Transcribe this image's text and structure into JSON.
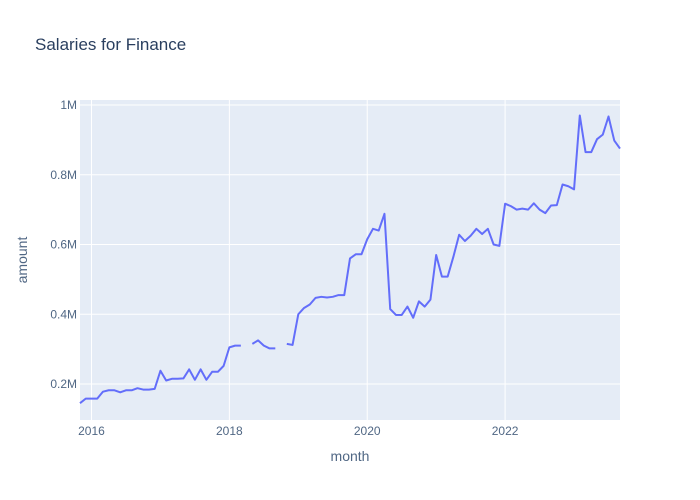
{
  "chart_data": {
    "type": "line",
    "title": "Salaries for Finance",
    "xlabel": "month",
    "ylabel": "amount",
    "x_ticks": [
      "2016",
      "2018",
      "2020",
      "2022"
    ],
    "y_ticks": [
      "0.2M",
      "0.4M",
      "0.6M",
      "0.8M",
      "1M"
    ],
    "grid": true,
    "line_color": "#636efa",
    "plot_bg": "#e5ecf6",
    "series": [
      {
        "segments": [
          [
            [
              "2015-11",
              0.145
            ],
            [
              "2015-12",
              0.158
            ],
            [
              "2016-01",
              0.158
            ],
            [
              "2016-02",
              0.158
            ],
            [
              "2016-03",
              0.178
            ],
            [
              "2016-04",
              0.182
            ],
            [
              "2016-05",
              0.182
            ],
            [
              "2016-06",
              0.176
            ],
            [
              "2016-07",
              0.182
            ],
            [
              "2016-08",
              0.182
            ],
            [
              "2016-09",
              0.188
            ],
            [
              "2016-10",
              0.184
            ],
            [
              "2016-11",
              0.184
            ],
            [
              "2016-12",
              0.186
            ],
            [
              "2017-01",
              0.238
            ],
            [
              "2017-02",
              0.21
            ],
            [
              "2017-03",
              0.215
            ],
            [
              "2017-04",
              0.215
            ],
            [
              "2017-05",
              0.216
            ],
            [
              "2017-06",
              0.242
            ],
            [
              "2017-07",
              0.212
            ],
            [
              "2017-08",
              0.242
            ],
            [
              "2017-09",
              0.212
            ],
            [
              "2017-10",
              0.235
            ],
            [
              "2017-11",
              0.235
            ],
            [
              "2017-12",
              0.252
            ],
            [
              "2018-01",
              0.305
            ],
            [
              "2018-02",
              0.31
            ],
            [
              "2018-03",
              0.31
            ]
          ],
          [
            [
              "2018-05",
              0.315
            ],
            [
              "2018-06",
              0.325
            ],
            [
              "2018-07",
              0.31
            ],
            [
              "2018-08",
              0.302
            ],
            [
              "2018-09",
              0.302
            ]
          ],
          [
            [
              "2018-11",
              0.315
            ],
            [
              "2018-12",
              0.312
            ],
            [
              "2019-01",
              0.4
            ],
            [
              "2019-02",
              0.418
            ],
            [
              "2019-03",
              0.428
            ],
            [
              "2019-04",
              0.447
            ],
            [
              "2019-05",
              0.45
            ],
            [
              "2019-06",
              0.448
            ],
            [
              "2019-07",
              0.45
            ],
            [
              "2019-08",
              0.455
            ],
            [
              "2019-09",
              0.455
            ],
            [
              "2019-10",
              0.56
            ],
            [
              "2019-11",
              0.572
            ],
            [
              "2019-12",
              0.572
            ],
            [
              "2020-01",
              0.615
            ],
            [
              "2020-02",
              0.645
            ],
            [
              "2020-03",
              0.64
            ],
            [
              "2020-04",
              0.688
            ],
            [
              "2020-05",
              0.415
            ],
            [
              "2020-06",
              0.398
            ],
            [
              "2020-07",
              0.398
            ],
            [
              "2020-08",
              0.422
            ],
            [
              "2020-09",
              0.39
            ],
            [
              "2020-10",
              0.437
            ],
            [
              "2020-11",
              0.422
            ],
            [
              "2020-12",
              0.442
            ],
            [
              "2021-01",
              0.57
            ],
            [
              "2021-02",
              0.508
            ],
            [
              "2021-03",
              0.508
            ],
            [
              "2021-04",
              0.565
            ],
            [
              "2021-05",
              0.628
            ],
            [
              "2021-06",
              0.61
            ],
            [
              "2021-07",
              0.625
            ],
            [
              "2021-08",
              0.645
            ],
            [
              "2021-09",
              0.63
            ],
            [
              "2021-10",
              0.645
            ],
            [
              "2021-11",
              0.6
            ],
            [
              "2021-12",
              0.596
            ],
            [
              "2022-01",
              0.717
            ],
            [
              "2022-02",
              0.71
            ],
            [
              "2022-03",
              0.7
            ],
            [
              "2022-04",
              0.703
            ],
            [
              "2022-05",
              0.7
            ],
            [
              "2022-06",
              0.718
            ],
            [
              "2022-07",
              0.7
            ],
            [
              "2022-08",
              0.69
            ],
            [
              "2022-09",
              0.712
            ],
            [
              "2022-10",
              0.713
            ],
            [
              "2022-11",
              0.772
            ],
            [
              "2022-12",
              0.767
            ],
            [
              "2023-01",
              0.758
            ],
            [
              "2023-02",
              0.97
            ],
            [
              "2023-03",
              0.865
            ],
            [
              "2023-04",
              0.865
            ],
            [
              "2023-05",
              0.902
            ],
            [
              "2023-06",
              0.915
            ],
            [
              "2023-07",
              0.967
            ],
            [
              "2023-08",
              0.898
            ],
            [
              "2023-09",
              0.875
            ]
          ]
        ]
      }
    ]
  }
}
